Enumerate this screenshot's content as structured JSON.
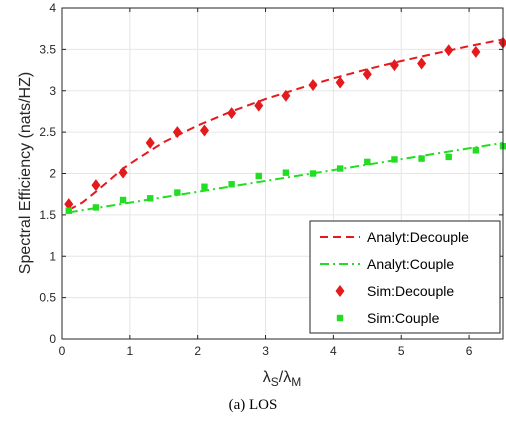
{
  "chart_data": {
    "type": "line",
    "xlabel": {
      "main": "λ",
      "sub1": "S",
      "mid": "/λ",
      "sub2": "M"
    },
    "ylabel": "Spectral Efficiency (nats/HZ)",
    "xlim": [
      0,
      6.5
    ],
    "ylim": [
      0,
      4
    ],
    "xticks": [
      0,
      1,
      2,
      3,
      4,
      5,
      6
    ],
    "yticks": [
      0,
      0.5,
      1,
      1.5,
      2,
      2.5,
      3,
      3.5,
      4
    ],
    "grid": true,
    "legend_position": "bottom-right",
    "series": [
      {
        "name": "Analyt:Decouple",
        "kind": "line",
        "style": "dashed",
        "color": "#e41a1c",
        "x": [
          0.1,
          0.3,
          0.5,
          0.7,
          0.9,
          1.1,
          1.5,
          2.0,
          2.5,
          3.0,
          3.5,
          4.0,
          4.5,
          5.0,
          5.5,
          6.0,
          6.5
        ],
        "y": [
          1.56,
          1.65,
          1.78,
          1.92,
          2.06,
          2.17,
          2.38,
          2.58,
          2.75,
          2.9,
          3.03,
          3.15,
          3.26,
          3.36,
          3.45,
          3.54,
          3.62
        ]
      },
      {
        "name": "Analyt:Couple",
        "kind": "line",
        "style": "dashdot",
        "color": "#22dd22",
        "x": [
          0.1,
          6.5
        ],
        "y": [
          1.53,
          2.37
        ]
      },
      {
        "name": "Sim:Decouple",
        "kind": "scatter",
        "marker": "diamond",
        "color": "#e41a1c",
        "x": [
          0.1,
          0.5,
          0.9,
          1.3,
          1.7,
          2.1,
          2.5,
          2.9,
          3.3,
          3.7,
          4.1,
          4.5,
          4.9,
          5.3,
          5.7,
          6.1,
          6.5
        ],
        "y": [
          1.63,
          1.86,
          2.01,
          2.37,
          2.5,
          2.52,
          2.73,
          2.82,
          2.94,
          3.07,
          3.1,
          3.2,
          3.31,
          3.33,
          3.49,
          3.47,
          3.58
        ]
      },
      {
        "name": "Sim:Couple",
        "kind": "scatter",
        "marker": "square",
        "color": "#22dd22",
        "x": [
          0.1,
          0.5,
          0.9,
          1.3,
          1.7,
          2.1,
          2.5,
          2.9,
          3.3,
          3.7,
          4.1,
          4.5,
          4.9,
          5.3,
          5.7,
          6.1,
          6.5
        ],
        "y": [
          1.55,
          1.59,
          1.68,
          1.7,
          1.77,
          1.84,
          1.87,
          1.97,
          2.01,
          2.0,
          2.06,
          2.14,
          2.17,
          2.18,
          2.2,
          2.28,
          2.33
        ]
      }
    ]
  },
  "caption": "(a)  LOS"
}
